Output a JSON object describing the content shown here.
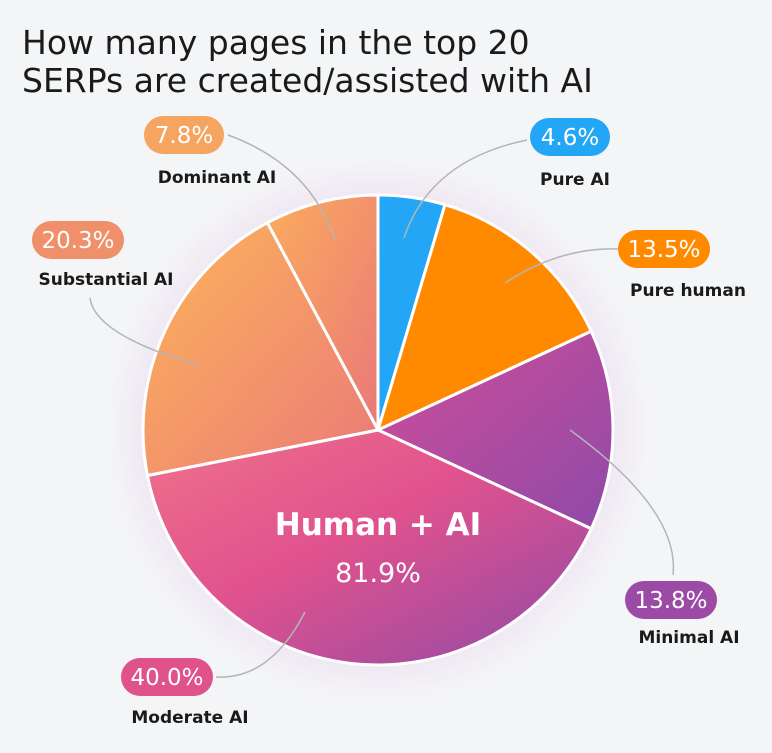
{
  "chart_data": {
    "type": "pie",
    "title_lines": [
      "How many pages in the top 20",
      "SERPs are created/assisted with AI"
    ],
    "slices": [
      {
        "name": "Pure AI",
        "value": 4.6,
        "label": "4.6%",
        "color": "#22a6f5"
      },
      {
        "name": "Pure human",
        "value": 13.5,
        "label": "13.5%",
        "color": "#ff8a00"
      },
      {
        "name": "Minimal AI",
        "value": 13.8,
        "label": "13.8%",
        "color": "#9b4aa6"
      },
      {
        "name": "Moderate AI",
        "value": 40.0,
        "label": "40.0%",
        "color": "#e0528a"
      },
      {
        "name": "Substantial AI",
        "value": 20.3,
        "label": "20.3%",
        "color": "#f0906a"
      },
      {
        "name": "Dominant AI",
        "value": 7.8,
        "label": "7.8%",
        "color": "#f5a560"
      }
    ],
    "center": {
      "label": "Human + AI",
      "value": "81.9%"
    }
  }
}
